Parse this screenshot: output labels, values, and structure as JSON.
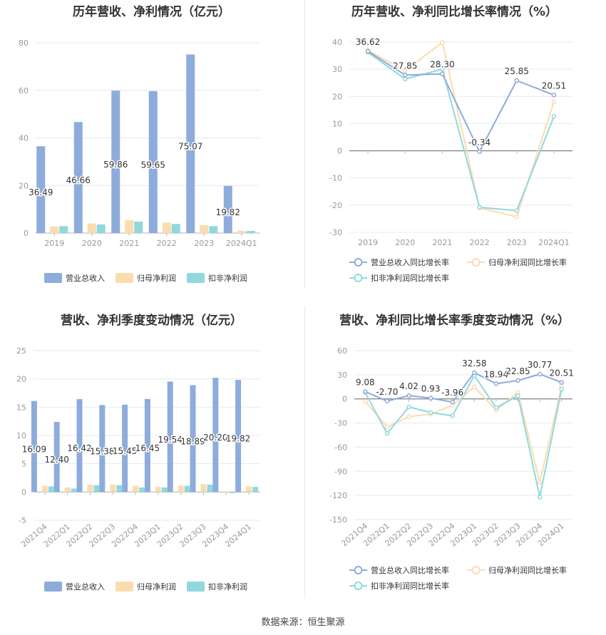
{
  "source_text": "数据来源：恒生聚源",
  "chart_data": [
    {
      "type": "bar",
      "title": "历年营收、净利情况（亿元）",
      "categories": [
        "2019",
        "2020",
        "2021",
        "2022",
        "2023",
        "2024Q1"
      ],
      "ylim": [
        0,
        80
      ],
      "yticks": [
        0,
        20,
        40,
        60,
        80
      ],
      "grid": true,
      "legend_position": "bottom",
      "series": [
        {
          "name": "营业总收入",
          "color": "#8eacdb",
          "values": [
            36.49,
            46.66,
            59.86,
            59.65,
            75.07,
            19.82
          ],
          "labels": [
            "36.49",
            "46.66",
            "59.86",
            "59.65",
            "75.07",
            "19.82"
          ]
        },
        {
          "name": "归母净利润",
          "color": "#fbdcae",
          "values": [
            2.8,
            4.0,
            5.4,
            4.4,
            3.3,
            1.0
          ]
        },
        {
          "name": "扣非净利润",
          "color": "#8fd8de",
          "values": [
            2.9,
            3.6,
            4.8,
            3.8,
            2.9,
            0.9
          ]
        }
      ]
    },
    {
      "type": "line",
      "title": "历年营收、净利同比增长率情况（%）",
      "categories": [
        "2019",
        "2020",
        "2021",
        "2022",
        "2023",
        "2024Q1"
      ],
      "ylim": [
        -30,
        40
      ],
      "yticks": [
        -30,
        -20,
        -10,
        0,
        10,
        20,
        30,
        40
      ],
      "grid": true,
      "legend_position": "bottom",
      "series": [
        {
          "name": "营业总收入同比增长率",
          "color": "#8eacdb",
          "values": [
            36.62,
            27.85,
            28.3,
            -0.34,
            25.85,
            20.51
          ],
          "labels": [
            "36.62",
            "27.85",
            "28.30",
            "-0.34",
            "25.85",
            "20.51"
          ]
        },
        {
          "name": "归母净利润同比增长率",
          "color": "#fbdcae",
          "values": [
            36.9,
            29.5,
            39.8,
            -21.0,
            -24.3,
            18.0
          ]
        },
        {
          "name": "扣非净利润同比增长率",
          "color": "#8fd8de",
          "values": [
            36.2,
            26.4,
            30.0,
            -20.8,
            -22.0,
            12.6
          ]
        }
      ]
    },
    {
      "type": "bar",
      "title": "营收、净利季度变动情况（亿元）",
      "categories": [
        "2021Q4",
        "2022Q1",
        "2022Q2",
        "2022Q3",
        "2022Q4",
        "2023Q1",
        "2023Q2",
        "2023Q3",
        "2023Q4",
        "2024Q1"
      ],
      "ylim": [
        -5,
        25
      ],
      "yticks": [
        -5,
        0,
        5,
        10,
        15,
        20,
        25
      ],
      "grid": true,
      "legend_position": "bottom",
      "series": [
        {
          "name": "营业总收入",
          "color": "#8eacdb",
          "values": [
            16.09,
            12.4,
            16.42,
            15.38,
            15.45,
            16.45,
            19.54,
            18.89,
            20.2,
            19.82
          ],
          "labels": [
            "16.09",
            "12.40",
            "16.42",
            "15.38",
            "15.45",
            "16.45",
            "19.54",
            "18.89",
            "20.20",
            "19.82"
          ]
        },
        {
          "name": "归母净利润",
          "color": "#fbdcae",
          "values": [
            1.1,
            0.8,
            1.3,
            1.3,
            1.1,
            0.9,
            1.1,
            1.4,
            -0.15,
            1.0
          ]
        },
        {
          "name": "扣非净利润",
          "color": "#8fd8de",
          "values": [
            1.0,
            0.6,
            1.2,
            1.2,
            0.8,
            0.8,
            1.1,
            1.3,
            -0.2,
            0.9
          ]
        }
      ]
    },
    {
      "type": "line",
      "title": "营收、净利同比增长率季度变动情况（%）",
      "categories": [
        "2021Q4",
        "2022Q1",
        "2022Q2",
        "2022Q3",
        "2022Q4",
        "2023Q1",
        "2023Q2",
        "2023Q3",
        "2023Q4",
        "2024Q1"
      ],
      "ylim": [
        -150,
        60
      ],
      "yticks": [
        -150,
        -120,
        -90,
        -60,
        -30,
        0,
        30,
        60
      ],
      "grid": true,
      "legend_position": "bottom",
      "series": [
        {
          "name": "营业总收入同比增长率",
          "color": "#8eacdb",
          "values": [
            9.08,
            -2.7,
            4.02,
            0.93,
            -3.96,
            32.58,
            18.94,
            22.85,
            30.77,
            20.51
          ],
          "labels": [
            "9.08",
            "-2.70",
            "4.02",
            "0.93",
            "-3.96",
            "32.58",
            "18.94",
            "22.85",
            "30.77",
            "20.51"
          ]
        },
        {
          "name": "归母净利润同比增长率",
          "color": "#fbdcae",
          "values": [
            -3.0,
            -35.0,
            -22.0,
            -19.0,
            -8.0,
            15.0,
            -14.0,
            8.0,
            -104.0,
            16.0
          ]
        },
        {
          "name": "扣非净利润同比增长率",
          "color": "#8fd8de",
          "values": [
            8.0,
            -43.0,
            -10.0,
            -17.0,
            -21.0,
            29.0,
            -11.0,
            4.0,
            -122.0,
            12.0
          ]
        }
      ]
    }
  ]
}
